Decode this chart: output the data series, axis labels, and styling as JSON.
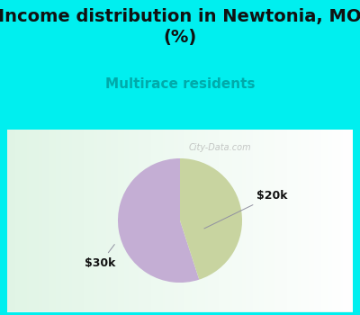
{
  "title": "Income distribution in Newtonia, MO\n(%)",
  "subtitle": "Multirace residents",
  "slices": [
    {
      "label": "$20k",
      "value": 55,
      "color": "#c4aed4"
    },
    {
      "label": "$30k",
      "value": 45,
      "color": "#c8d4a0"
    }
  ],
  "title_fontsize": 14,
  "subtitle_fontsize": 11,
  "subtitle_color": "#00aaaa",
  "label_fontsize": 9,
  "background_color": "#00efef",
  "chart_bg_color": "#e8f7ee",
  "startangle": 90,
  "watermark": "City-Data.com"
}
